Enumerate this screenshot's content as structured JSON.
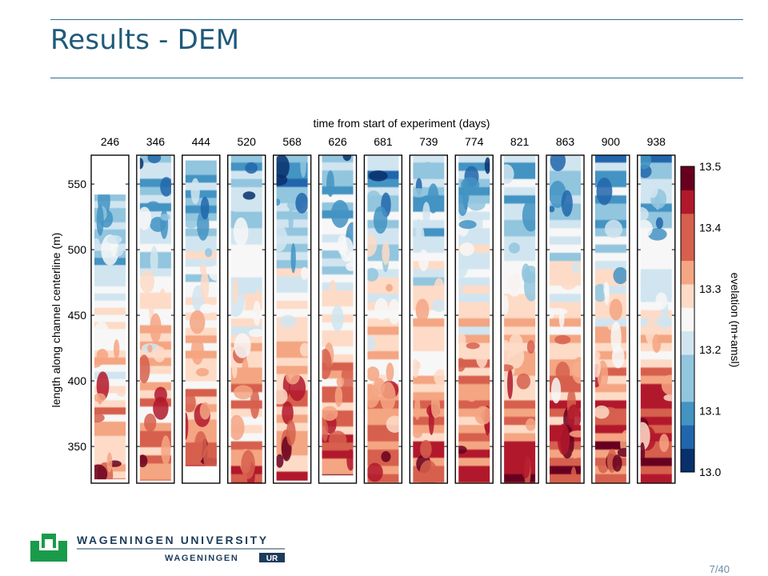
{
  "slide": {
    "title": "Results - DEM",
    "page_current": "7",
    "page_total": "40"
  },
  "logo": {
    "line1": "WAGENINGEN UNIVERSITY",
    "line2_left": "WAGENINGEN",
    "line2_box": "UR",
    "accent_color": "#1a9b4a",
    "text_color": "#1c3c5a"
  },
  "chart_data": {
    "type": "heatmap",
    "title": "time from start of experiment (days)",
    "ylabel": "length along channel centerline (m)",
    "colorbar_label": "evelation (m+amsl)",
    "panels": [
      "246",
      "346",
      "444",
      "520",
      "568",
      "626",
      "681",
      "739",
      "774",
      "821",
      "863",
      "900",
      "938"
    ],
    "yticks": [
      350,
      400,
      450,
      500,
      550
    ],
    "ylim": [
      322,
      572
    ],
    "colorbar_ticks": [
      "13.0",
      "13.1",
      "13.2",
      "13.3",
      "13.4",
      "13.5"
    ],
    "colorbar_range": [
      13.0,
      13.5
    ],
    "colorbar_levels": 13,
    "colormap": [
      "#08306b",
      "#2166ac",
      "#4393c3",
      "#92c5de",
      "#d1e5f0",
      "#f7f7f7",
      "#fddbc7",
      "#f4a582",
      "#d6604d",
      "#b2182b",
      "#67001f"
    ],
    "data_extent": [
      {
        "day": "246",
        "y_min": 325,
        "y_max": 542
      },
      {
        "day": "346",
        "y_min": 324,
        "y_max": 572
      },
      {
        "day": "444",
        "y_min": 335,
        "y_max": 568
      },
      {
        "day": "520",
        "y_min": 322,
        "y_max": 572
      },
      {
        "day": "568",
        "y_min": 324,
        "y_max": 572
      },
      {
        "day": "626",
        "y_min": 328,
        "y_max": 572
      },
      {
        "day": "681",
        "y_min": 322,
        "y_max": 572
      },
      {
        "day": "739",
        "y_min": 322,
        "y_max": 572
      },
      {
        "day": "774",
        "y_min": 322,
        "y_max": 572
      },
      {
        "day": "821",
        "y_min": 322,
        "y_max": 572
      },
      {
        "day": "863",
        "y_min": 322,
        "y_max": 572
      },
      {
        "day": "900",
        "y_min": 322,
        "y_max": 572
      },
      {
        "day": "938",
        "y_min": 322,
        "y_max": 572
      }
    ],
    "trend": "elevation generally higher downstream (low y) and lower upstream (high y); panel color intensifies with time"
  }
}
